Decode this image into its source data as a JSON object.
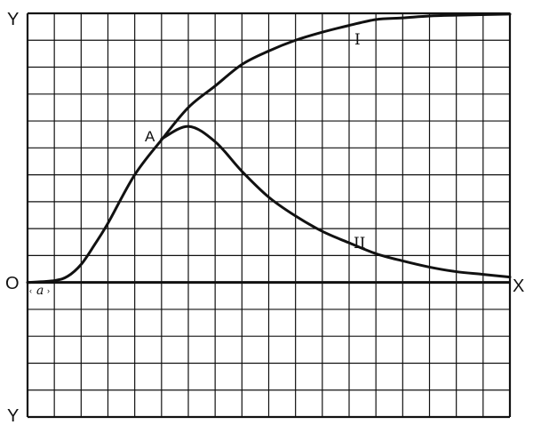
{
  "chart_data": {
    "type": "line",
    "title": "",
    "xlabel": "X",
    "ylabel": "Y",
    "origin_label": "O",
    "lower_y_label": "Y",
    "interval_label": "a",
    "point_label": "A",
    "xlim": [
      0,
      18
    ],
    "ylim": [
      -5,
      10
    ],
    "grid": true,
    "grid_step": 1,
    "series": [
      {
        "name": "I",
        "x": [
          0,
          1,
          1.5,
          2,
          2.5,
          3,
          4,
          5,
          6,
          7,
          8,
          9,
          10,
          11,
          12,
          13,
          14,
          15,
          16,
          18
        ],
        "y": [
          0,
          0.07,
          0.23,
          0.67,
          1.4,
          2.2,
          4.0,
          5.3,
          6.5,
          7.3,
          8.1,
          8.6,
          9.0,
          9.3,
          9.55,
          9.77,
          9.83,
          9.9,
          9.93,
          9.97
        ]
      },
      {
        "name": "II",
        "x": [
          5,
          6,
          7,
          8,
          9,
          10,
          11,
          12,
          13,
          14,
          15,
          16,
          17,
          18
        ],
        "y": [
          5.33,
          5.8,
          5.23,
          4.13,
          3.17,
          2.47,
          1.9,
          1.47,
          1.07,
          0.8,
          0.57,
          0.4,
          0.3,
          0.2
        ]
      }
    ],
    "colors": {
      "ink": "#111111",
      "paper": "#ffffff"
    }
  }
}
